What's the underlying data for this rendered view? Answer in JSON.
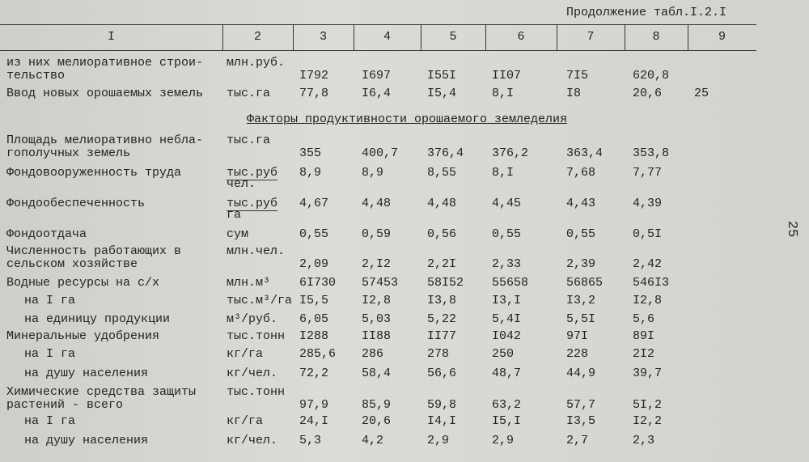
{
  "header": {
    "continuation": "Продолжение табл.I.2.I"
  },
  "table": {
    "columns": [
      "I",
      "2",
      "3",
      "4",
      "5",
      "6",
      "7",
      "8",
      "9"
    ],
    "rows": [
      {
        "label": [
          "из них мелиоративное строи-",
          "тельство"
        ],
        "unit": [
          "млн.руб."
        ],
        "values": [
          "I792",
          "I697",
          "I55I",
          "II07",
          "7I5",
          "620,8"
        ]
      },
      {
        "label": [
          "Ввод новых орошаемых земель"
        ],
        "unit": [
          "тыс.га"
        ],
        "values": [
          "77,8",
          "I6,4",
          "I5,4",
          "8,I",
          "I8",
          "20,6",
          "25"
        ]
      },
      {
        "section": "Факторы продуктивности орошаемого земледелия"
      },
      {
        "label": [
          "Площадь мелиоративно небла-",
          "гополучных земель"
        ],
        "unit": [
          "тыс.га"
        ],
        "values": [
          "355",
          "400,7",
          "376,4",
          "376,2",
          "363,4",
          "353,8"
        ]
      },
      {
        "label": [
          "Фондовооруженность труда"
        ],
        "unit": [
          "тыс.руб",
          "чел."
        ],
        "values": [
          "8,9",
          "8,9",
          "8,55",
          "8,I",
          "7,68",
          "7,77"
        ]
      },
      {
        "label": [
          "Фондообеспеченность"
        ],
        "unit": [
          "тыс.руб",
          "га"
        ],
        "values": [
          "4,67",
          "4,48",
          "4,48",
          "4,45",
          "4,43",
          "4,39"
        ]
      },
      {
        "label": [
          "Фондоотдача"
        ],
        "unit": [
          "сум"
        ],
        "values": [
          "0,55",
          "0,59",
          "0,56",
          "0,55",
          "0,55",
          "0,5I"
        ]
      },
      {
        "label": [
          "Численность работающих в",
          "сельском хозяйстве"
        ],
        "unit": [
          "млн.чел."
        ],
        "values": [
          "2,09",
          "2,I2",
          "2,2I",
          "2,33",
          "2,39",
          "2,42"
        ]
      },
      {
        "label": [
          "Водные ресурсы на с/х"
        ],
        "unit": [
          "млн.м³"
        ],
        "values": [
          "6I730",
          "57453",
          "58I52",
          "55658",
          "56865",
          "546I3"
        ]
      },
      {
        "label": [
          "на I га"
        ],
        "sub": true,
        "unit": [
          "тыс.м³/га"
        ],
        "values": [
          "I5,5",
          "I2,8",
          "I3,8",
          "I3,I",
          "I3,2",
          "I2,8"
        ]
      },
      {
        "label": [
          "на единицу продукции"
        ],
        "sub": true,
        "unit": [
          "м³/руб."
        ],
        "values": [
          "6,05",
          "5,03",
          "5,22",
          "5,4I",
          "5,5I",
          "5,6"
        ]
      },
      {
        "label": [
          "Минеральные удобрения"
        ],
        "unit": [
          "тыс.тонн"
        ],
        "values": [
          "I288",
          "II88",
          "II77",
          "I042",
          "97I",
          "89I"
        ]
      },
      {
        "label": [
          "на I га"
        ],
        "sub": true,
        "unit": [
          "кг/га"
        ],
        "values": [
          "285,6",
          "286",
          "278",
          "250",
          "228",
          "2I2"
        ]
      },
      {
        "label": [
          "на душу населения"
        ],
        "sub": true,
        "unit": [
          "кг/чел."
        ],
        "values": [
          "72,2",
          "58,4",
          "56,6",
          "48,7",
          "44,9",
          "39,7"
        ]
      },
      {
        "label": [
          "Химические средства защиты",
          "растений - всего"
        ],
        "unit": [
          "тыс.тонн"
        ],
        "values": [
          "97,9",
          "85,9",
          "59,8",
          "63,2",
          "57,7",
          "5I,2"
        ]
      },
      {
        "label": [
          "на I га"
        ],
        "sub": true,
        "unit": [
          "кг/га"
        ],
        "values": [
          "24,I",
          "20,6",
          "I4,I",
          "I5,I",
          "I3,5",
          "I2,2"
        ]
      },
      {
        "label": [
          "на душу населения"
        ],
        "sub": true,
        "unit": [
          "кг/чел."
        ],
        "values": [
          "5,3",
          "4,2",
          "2,9",
          "2,9",
          "2,7",
          "2,3"
        ]
      }
    ]
  },
  "page_number": "25"
}
